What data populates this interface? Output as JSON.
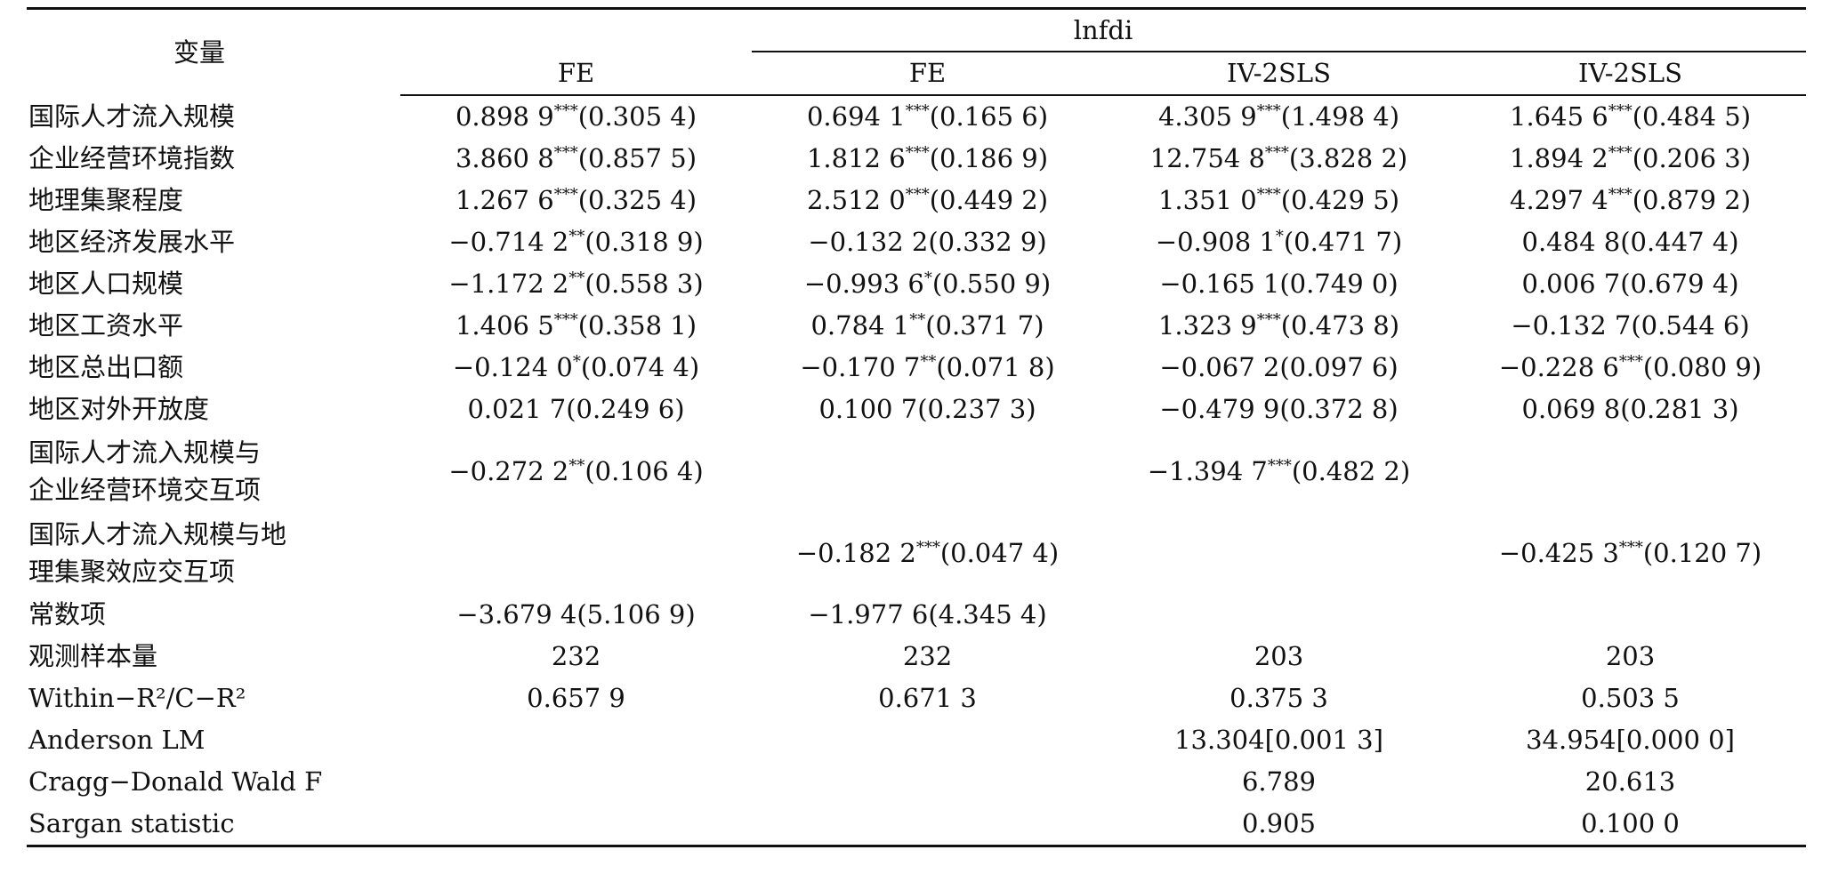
{
  "table": {
    "var_header": "变量",
    "group_header": "lnfdi",
    "model_headers": [
      "FE",
      "FE",
      "IV-2SLS",
      "IV-2SLS"
    ],
    "rows": [
      {
        "label": [
          "国际人才流入规模"
        ],
        "cells": [
          {
            "coef": "0.898 9",
            "stars": "***",
            "se": "(0.305 4)"
          },
          {
            "coef": "0.694 1",
            "stars": "***",
            "se": "(0.165 6)"
          },
          {
            "coef": "4.305 9",
            "stars": "***",
            "se": "(1.498 4)"
          },
          {
            "coef": "1.645 6",
            "stars": "***",
            "se": "(0.484 5)"
          }
        ]
      },
      {
        "label": [
          "企业经营环境指数"
        ],
        "cells": [
          {
            "coef": "3.860 8",
            "stars": "***",
            "se": "(0.857 5)"
          },
          {
            "coef": "1.812 6",
            "stars": "***",
            "se": "(0.186 9)"
          },
          {
            "coef": "12.754 8",
            "stars": "***",
            "se": "(3.828 2)"
          },
          {
            "coef": "1.894 2",
            "stars": "***",
            "se": "(0.206 3)"
          }
        ]
      },
      {
        "label": [
          "地理集聚程度"
        ],
        "cells": [
          {
            "coef": "1.267 6",
            "stars": "***",
            "se": "(0.325 4)"
          },
          {
            "coef": "2.512 0",
            "stars": "***",
            "se": "(0.449 2)"
          },
          {
            "coef": "1.351 0",
            "stars": "***",
            "se": "(0.429 5)"
          },
          {
            "coef": "4.297 4",
            "stars": "***",
            "se": "(0.879 2)"
          }
        ]
      },
      {
        "label": [
          "地区经济发展水平"
        ],
        "cells": [
          {
            "coef": "−0.714 2",
            "stars": "**",
            "se": "(0.318 9)"
          },
          {
            "coef": "−0.132 2",
            "stars": "",
            "se": "(0.332 9)"
          },
          {
            "coef": "−0.908 1",
            "stars": "*",
            "se": "(0.471 7)"
          },
          {
            "coef": "0.484 8",
            "stars": "",
            "se": "(0.447 4)"
          }
        ]
      },
      {
        "label": [
          "地区人口规模"
        ],
        "cells": [
          {
            "coef": "−1.172 2",
            "stars": "**",
            "se": "(0.558 3)"
          },
          {
            "coef": "−0.993 6",
            "stars": "*",
            "se": "(0.550 9)"
          },
          {
            "coef": "−0.165 1",
            "stars": "",
            "se": "(0.749 0)"
          },
          {
            "coef": "0.006 7",
            "stars": "",
            "se": "(0.679 4)"
          }
        ]
      },
      {
        "label": [
          "地区工资水平"
        ],
        "cells": [
          {
            "coef": "1.406 5",
            "stars": "***",
            "se": "(0.358 1)"
          },
          {
            "coef": "0.784 1",
            "stars": "**",
            "se": "(0.371 7)"
          },
          {
            "coef": "1.323 9",
            "stars": "***",
            "se": "(0.473 8)"
          },
          {
            "coef": "−0.132 7",
            "stars": "",
            "se": "(0.544 6)"
          }
        ]
      },
      {
        "label": [
          "地区总出口额"
        ],
        "cells": [
          {
            "coef": "−0.124 0",
            "stars": "*",
            "se": "(0.074 4)"
          },
          {
            "coef": "−0.170 7",
            "stars": "**",
            "se": "(0.071 8)"
          },
          {
            "coef": "−0.067 2",
            "stars": "",
            "se": "(0.097 6)"
          },
          {
            "coef": "−0.228 6",
            "stars": "***",
            "se": "(0.080 9)"
          }
        ]
      },
      {
        "label": [
          "地区对外开放度"
        ],
        "cells": [
          {
            "coef": "0.021 7",
            "stars": "",
            "se": "(0.249 6)"
          },
          {
            "coef": "0.100 7",
            "stars": "",
            "se": "(0.237 3)"
          },
          {
            "coef": "−0.479 9",
            "stars": "",
            "se": "(0.372 8)"
          },
          {
            "coef": "0.069 8",
            "stars": "",
            "se": "(0.281 3)"
          }
        ]
      },
      {
        "label": [
          "国际人才流入规模与",
          "企业经营环境交互项"
        ],
        "cells": [
          {
            "coef": "−0.272 2",
            "stars": "**",
            "se": "(0.106 4)"
          },
          {
            "coef": "",
            "stars": "",
            "se": ""
          },
          {
            "coef": "−1.394 7",
            "stars": "***",
            "se": "(0.482 2)"
          },
          {
            "coef": "",
            "stars": "",
            "se": ""
          }
        ]
      },
      {
        "label": [
          "国际人才流入规模与地",
          "理集聚效应交互项"
        ],
        "cells": [
          {
            "coef": "",
            "stars": "",
            "se": ""
          },
          {
            "coef": "−0.182 2",
            "stars": "***",
            "se": "(0.047 4)"
          },
          {
            "coef": "",
            "stars": "",
            "se": ""
          },
          {
            "coef": "−0.425 3",
            "stars": "***",
            "se": "(0.120 7)"
          }
        ]
      },
      {
        "label": [
          "常数项"
        ],
        "cells": [
          {
            "coef": "−3.679 4",
            "stars": "",
            "se": "(5.106 9)"
          },
          {
            "coef": "−1.977 6",
            "stars": "",
            "se": "(4.345 4)"
          },
          {
            "coef": "",
            "stars": "",
            "se": ""
          },
          {
            "coef": "",
            "stars": "",
            "se": ""
          }
        ]
      },
      {
        "label": [
          "观测样本量"
        ],
        "cells": [
          {
            "coef": "232",
            "stars": "",
            "se": ""
          },
          {
            "coef": "232",
            "stars": "",
            "se": ""
          },
          {
            "coef": "203",
            "stars": "",
            "se": ""
          },
          {
            "coef": "203",
            "stars": "",
            "se": ""
          }
        ]
      },
      {
        "label": [
          "Within−R²/C−R²"
        ],
        "cells": [
          {
            "coef": "0.657 9",
            "stars": "",
            "se": ""
          },
          {
            "coef": "0.671 3",
            "stars": "",
            "se": ""
          },
          {
            "coef": "0.375 3",
            "stars": "",
            "se": ""
          },
          {
            "coef": "0.503 5",
            "stars": "",
            "se": ""
          }
        ]
      },
      {
        "label": [
          "Anderson LM"
        ],
        "cells": [
          {
            "coef": "",
            "stars": "",
            "se": ""
          },
          {
            "coef": "",
            "stars": "",
            "se": ""
          },
          {
            "coef": "13.304[0.001 3]",
            "stars": "",
            "se": ""
          },
          {
            "coef": "34.954[0.000 0]",
            "stars": "",
            "se": ""
          }
        ]
      },
      {
        "label": [
          "Cragg−Donald Wald F"
        ],
        "cells": [
          {
            "coef": "",
            "stars": "",
            "se": ""
          },
          {
            "coef": "",
            "stars": "",
            "se": ""
          },
          {
            "coef": "6.789",
            "stars": "",
            "se": ""
          },
          {
            "coef": "20.613",
            "stars": "",
            "se": ""
          }
        ]
      },
      {
        "label": [
          "Sargan statistic"
        ],
        "cells": [
          {
            "coef": "",
            "stars": "",
            "se": ""
          },
          {
            "coef": "",
            "stars": "",
            "se": ""
          },
          {
            "coef": "0.905",
            "stars": "",
            "se": ""
          },
          {
            "coef": "0.100 0",
            "stars": "",
            "se": ""
          }
        ]
      }
    ]
  }
}
